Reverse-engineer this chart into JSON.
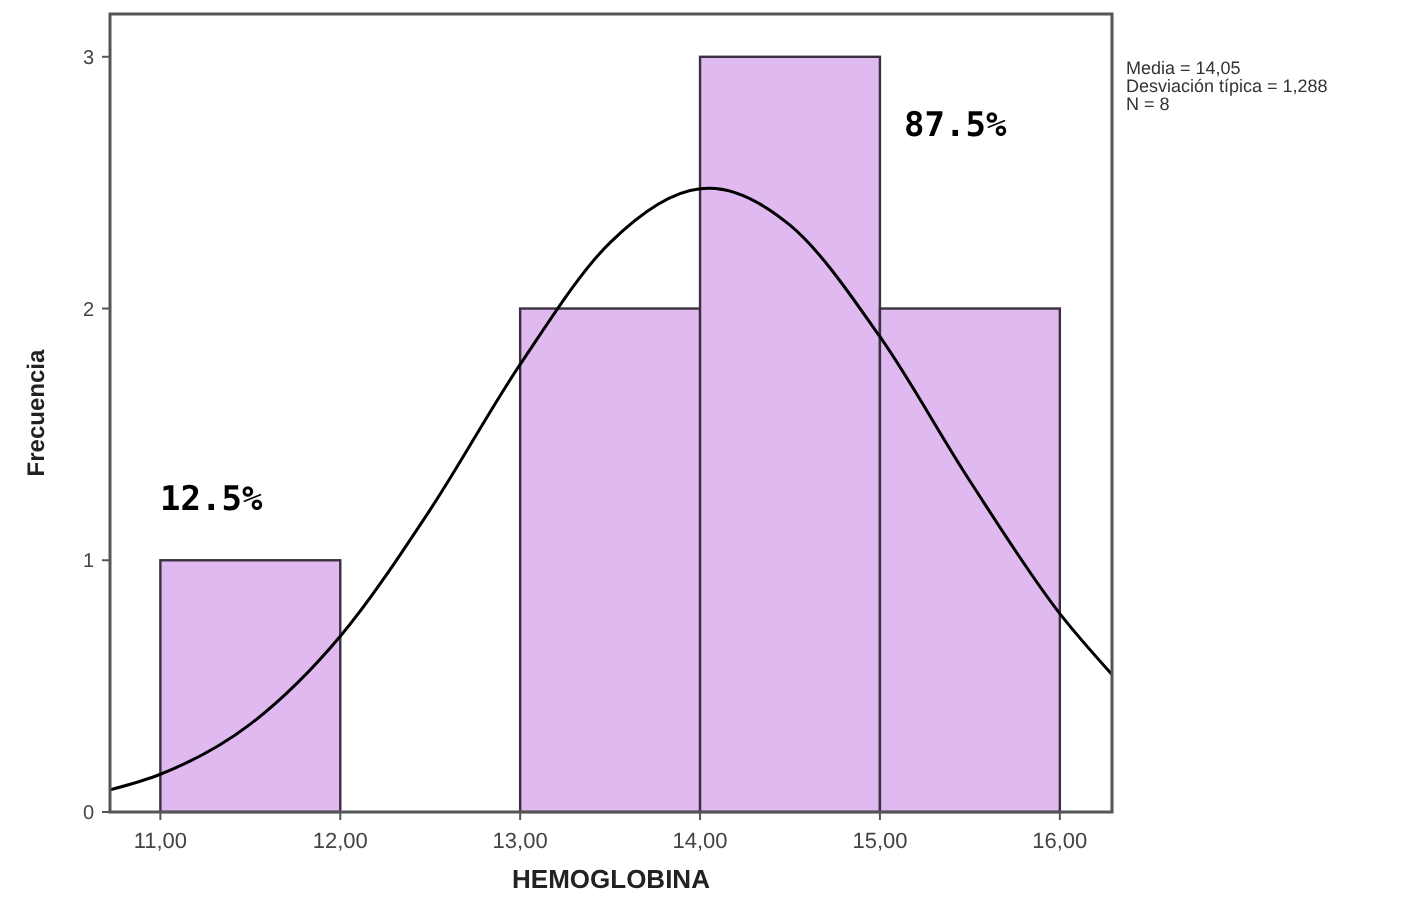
{
  "chart_data": {
    "type": "histogram",
    "xlabel": "HEMOGLOBINA",
    "ylabel": "Frecuencia",
    "bins": [
      11,
      12,
      13,
      14,
      15,
      16
    ],
    "values": [
      1,
      0,
      2,
      3,
      2
    ],
    "color": "#dfb9f0",
    "series": [
      {
        "type": "line",
        "color": "#000000",
        "x": [
          10.72,
          11,
          11.5,
          12,
          12.5,
          13,
          13.5,
          14,
          14.05,
          14.5,
          15,
          15.5,
          16,
          16.29
        ],
        "values": [
          0.088,
          0.15,
          0.349,
          0.698,
          1.201,
          1.778,
          2.262,
          2.476,
          2.478,
          2.331,
          1.888,
          1.315,
          0.788,
          0.546
        ]
      }
    ],
    "xlim": [
      10.72,
      16.29
    ],
    "ylim": [
      0,
      3.17
    ],
    "xticks": [
      {
        "value": 11,
        "label": "11,00"
      },
      {
        "value": 12,
        "label": "12,00"
      },
      {
        "value": 13,
        "label": "13,00"
      },
      {
        "value": 14,
        "label": "14,00"
      },
      {
        "value": 15,
        "label": "15,00"
      },
      {
        "value": 16,
        "label": "16,00"
      }
    ],
    "yticks": [
      0,
      1,
      2,
      3
    ],
    "annotations": [
      "12.5%",
      "87.5%",
      "Media = 14,05",
      "Desviación típica = 1,288",
      "N = 8"
    ]
  }
}
